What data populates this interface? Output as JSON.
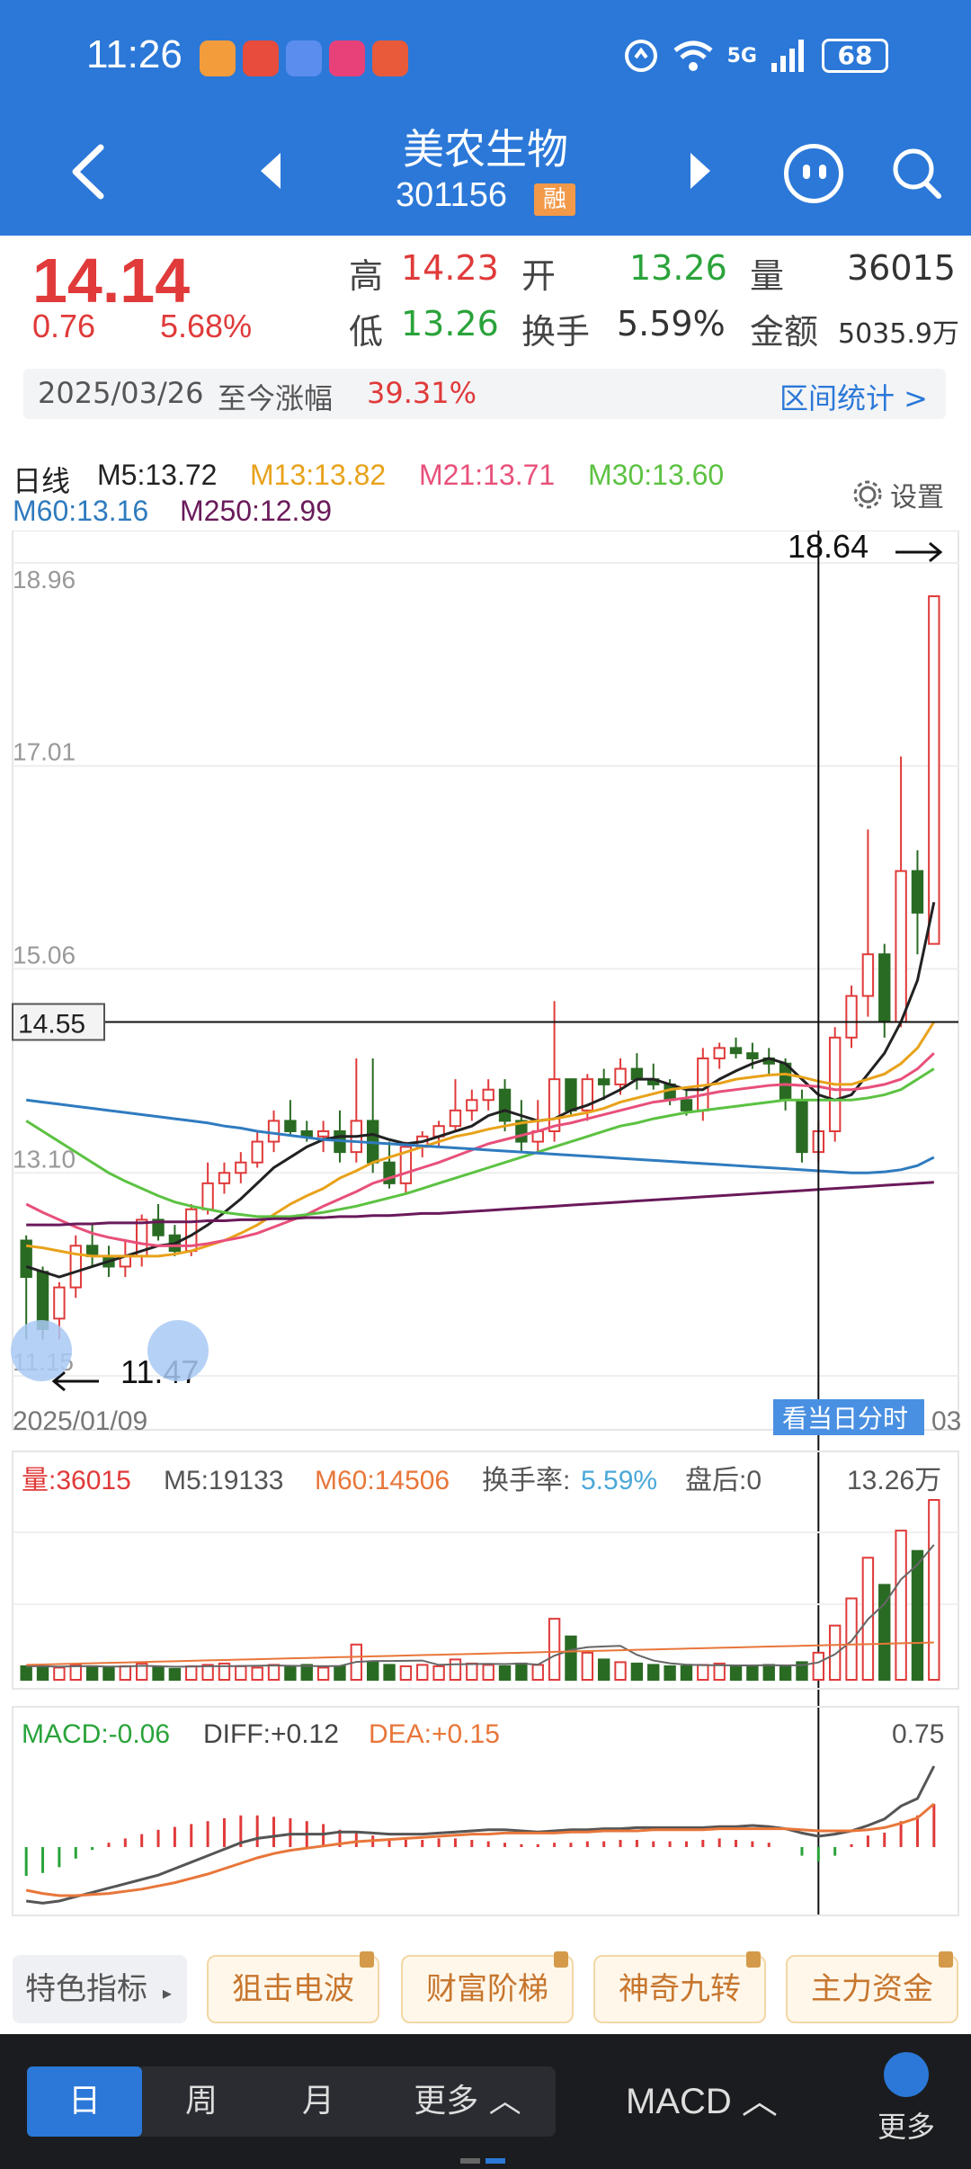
{
  "status_bar": {
    "time": "11:26",
    "network": "5G",
    "battery": "68",
    "app_icon_colors": [
      "#f39c3c",
      "#e74c3c",
      "#5b8def",
      "#e8417a",
      "#e85a3a"
    ]
  },
  "nav": {
    "stock_name": "美农生物",
    "stock_code": "301156",
    "margin_badge": "融"
  },
  "quote": {
    "price": "14.14",
    "change": "0.76",
    "change_pct": "5.68%",
    "high_label": "高",
    "high": "14.23",
    "open_label": "开",
    "open": "13.26",
    "volume_label": "量",
    "volume": "36015",
    "low_label": "低",
    "low": "13.26",
    "turnover_label": "换手",
    "turnover": "5.59%",
    "amount_label": "金额",
    "amount": "5035.9万",
    "since_date": "2025/03/26",
    "since_label": "至今涨幅",
    "since_pct": "39.31%",
    "range_stats": "区间统计 >"
  },
  "indicators": {
    "period": "日线",
    "m5": "M5:13.72",
    "m13": "M13:13.82",
    "m21": "M21:13.71",
    "m30": "M30:13.60",
    "m60": "M60:13.16",
    "m250": "M250:12.99",
    "settings": "设置"
  },
  "colors": {
    "up": "#e03a3a",
    "down": "#2a6b24",
    "m5": "#222222",
    "m13": "#e8a21a",
    "m21": "#e8507a",
    "m30": "#5cc242",
    "m60": "#2f7bbf",
    "m250": "#6a1a5a",
    "accent": "#2b78d8"
  },
  "chart_data": {
    "type": "candlestick",
    "y_ticks": [
      "18.96",
      "17.01",
      "15.06",
      "13.10",
      "11.15"
    ],
    "ylim": [
      11.15,
      18.96
    ],
    "high_marker": "18.64",
    "low_marker": "11.47",
    "crosshair_value": "14.55",
    "start_date": "2025/01/09",
    "end_date_partial": "03",
    "intraday_button": "看当日分时",
    "candles": [
      [
        12.45,
        12.1,
        12.5,
        11.5
      ],
      [
        12.15,
        11.6,
        12.2,
        11.5
      ],
      [
        11.7,
        12.0,
        12.05,
        11.5
      ],
      [
        12.0,
        12.4,
        12.5,
        11.9
      ],
      [
        12.4,
        12.3,
        12.6,
        12.2
      ],
      [
        12.3,
        12.2,
        12.4,
        12.1
      ],
      [
        12.2,
        12.3,
        12.45,
        12.1
      ],
      [
        12.3,
        12.65,
        12.7,
        12.2
      ],
      [
        12.65,
        12.5,
        12.8,
        12.45
      ],
      [
        12.5,
        12.35,
        12.6,
        12.3
      ],
      [
        12.35,
        12.75,
        12.8,
        12.3
      ],
      [
        12.75,
        13.0,
        13.2,
        12.7
      ],
      [
        13.0,
        13.1,
        13.2,
        12.9
      ],
      [
        13.1,
        13.2,
        13.3,
        13.0
      ],
      [
        13.2,
        13.4,
        13.5,
        13.15
      ],
      [
        13.4,
        13.6,
        13.7,
        13.3
      ],
      [
        13.6,
        13.5,
        13.8,
        13.45
      ],
      [
        13.5,
        13.45,
        13.6,
        13.4
      ],
      [
        13.45,
        13.5,
        13.6,
        13.3
      ],
      [
        13.5,
        13.3,
        13.7,
        13.2
      ],
      [
        13.3,
        13.6,
        14.2,
        13.2
      ],
      [
        13.6,
        13.2,
        14.2,
        13.1
      ],
      [
        13.2,
        13.0,
        13.4,
        12.95
      ],
      [
        13.0,
        13.35,
        13.4,
        12.9
      ],
      [
        13.35,
        13.45,
        13.5,
        13.25
      ],
      [
        13.45,
        13.55,
        13.6,
        13.35
      ],
      [
        13.55,
        13.7,
        14.0,
        13.5
      ],
      [
        13.7,
        13.8,
        13.9,
        13.6
      ],
      [
        13.8,
        13.9,
        14.0,
        13.7
      ],
      [
        13.9,
        13.6,
        14.0,
        13.5
      ],
      [
        13.6,
        13.4,
        13.8,
        13.3
      ],
      [
        13.4,
        13.5,
        13.8,
        13.3
      ],
      [
        13.5,
        14.0,
        14.75,
        13.4
      ],
      [
        14.0,
        13.7,
        14.0,
        13.65
      ],
      [
        13.7,
        14.0,
        14.05,
        13.6
      ],
      [
        14.0,
        13.95,
        14.1,
        13.8
      ],
      [
        13.95,
        14.1,
        14.2,
        13.85
      ],
      [
        14.1,
        14.0,
        14.25,
        13.9
      ],
      [
        14.0,
        13.95,
        14.15,
        13.9
      ],
      [
        13.95,
        13.8,
        14.0,
        13.75
      ],
      [
        13.8,
        13.7,
        13.9,
        13.65
      ],
      [
        13.7,
        14.2,
        14.3,
        13.6
      ],
      [
        14.2,
        14.3,
        14.35,
        14.1
      ],
      [
        14.3,
        14.25,
        14.4,
        14.2
      ],
      [
        14.25,
        14.2,
        14.35,
        14.1
      ],
      [
        14.2,
        14.15,
        14.3,
        14.05
      ],
      [
        14.15,
        13.8,
        14.2,
        13.7
      ],
      [
        13.8,
        13.3,
        13.9,
        13.2
      ],
      [
        13.3,
        13.5,
        13.6,
        13.2
      ],
      [
        13.5,
        14.4,
        14.5,
        13.4
      ],
      [
        14.4,
        14.8,
        14.9,
        14.3
      ],
      [
        14.8,
        15.2,
        16.4,
        14.6
      ],
      [
        15.2,
        14.55,
        15.3,
        14.4
      ],
      [
        14.55,
        16.0,
        17.1,
        14.5
      ],
      [
        16.0,
        15.6,
        16.2,
        15.2
      ],
      [
        15.3,
        18.64,
        18.64,
        15.3
      ]
    ],
    "ma": {
      "m5": [
        12.2,
        12.15,
        12.1,
        12.15,
        12.2,
        12.25,
        12.3,
        12.35,
        12.4,
        12.42,
        12.5,
        12.6,
        12.72,
        12.85,
        13.0,
        13.15,
        13.25,
        13.35,
        13.42,
        13.45,
        13.45,
        13.47,
        13.42,
        13.38,
        13.4,
        13.45,
        13.5,
        13.55,
        13.65,
        13.7,
        13.65,
        13.6,
        13.62,
        13.7,
        13.75,
        13.82,
        13.9,
        14.0,
        14.0,
        13.95,
        13.9,
        13.9,
        14.0,
        14.08,
        14.15,
        14.2,
        14.15,
        14.0,
        13.85,
        13.8,
        13.85,
        14.05,
        14.25,
        14.55,
        14.95,
        15.7
      ],
      "m13": [
        12.4,
        12.38,
        12.35,
        12.32,
        12.3,
        12.3,
        12.3,
        12.3,
        12.3,
        12.32,
        12.35,
        12.4,
        12.45,
        12.52,
        12.6,
        12.7,
        12.8,
        12.88,
        12.95,
        13.05,
        13.12,
        13.2,
        13.25,
        13.3,
        13.35,
        13.4,
        13.45,
        13.48,
        13.52,
        13.55,
        13.58,
        13.6,
        13.62,
        13.65,
        13.68,
        13.72,
        13.78,
        13.82,
        13.86,
        13.9,
        13.92,
        13.94,
        13.96,
        14.0,
        14.02,
        14.04,
        14.05,
        14.02,
        13.98,
        13.95,
        13.95,
        14.0,
        14.05,
        14.15,
        14.3,
        14.55
      ],
      "m21": [
        12.8,
        12.72,
        12.65,
        12.58,
        12.52,
        12.48,
        12.45,
        12.42,
        12.4,
        12.4,
        12.4,
        12.42,
        12.45,
        12.48,
        12.52,
        12.58,
        12.64,
        12.7,
        12.78,
        12.85,
        12.92,
        13.0,
        13.05,
        13.1,
        13.15,
        13.2,
        13.26,
        13.32,
        13.38,
        13.42,
        13.46,
        13.5,
        13.55,
        13.58,
        13.62,
        13.66,
        13.7,
        13.74,
        13.78,
        13.8,
        13.82,
        13.85,
        13.88,
        13.9,
        13.92,
        13.94,
        13.95,
        13.94,
        13.93,
        13.9,
        13.9,
        13.92,
        13.95,
        14.0,
        14.1,
        14.25
      ],
      "m30": [
        13.6,
        13.5,
        13.4,
        13.3,
        13.2,
        13.1,
        13.02,
        12.95,
        12.88,
        12.82,
        12.78,
        12.75,
        12.72,
        12.7,
        12.68,
        12.68,
        12.68,
        12.7,
        12.72,
        12.75,
        12.78,
        12.82,
        12.86,
        12.9,
        12.95,
        13.0,
        13.05,
        13.1,
        13.15,
        13.2,
        13.25,
        13.3,
        13.35,
        13.4,
        13.45,
        13.5,
        13.55,
        13.58,
        13.62,
        13.65,
        13.68,
        13.7,
        13.72,
        13.74,
        13.76,
        13.78,
        13.8,
        13.8,
        13.8,
        13.8,
        13.8,
        13.82,
        13.85,
        13.9,
        14.0,
        14.1
      ],
      "m60": [
        13.8,
        13.78,
        13.76,
        13.74,
        13.72,
        13.7,
        13.68,
        13.66,
        13.64,
        13.62,
        13.6,
        13.58,
        13.55,
        13.53,
        13.5,
        13.48,
        13.46,
        13.44,
        13.42,
        13.41,
        13.4,
        13.39,
        13.38,
        13.37,
        13.36,
        13.35,
        13.34,
        13.33,
        13.32,
        13.31,
        13.3,
        13.29,
        13.28,
        13.27,
        13.26,
        13.25,
        13.24,
        13.23,
        13.22,
        13.21,
        13.2,
        13.19,
        13.18,
        13.17,
        13.16,
        13.15,
        13.14,
        13.13,
        13.12,
        13.11,
        13.1,
        13.1,
        13.11,
        13.13,
        13.17,
        13.25
      ],
      "m250": [
        12.6,
        12.6,
        12.6,
        12.61,
        12.61,
        12.62,
        12.62,
        12.62,
        12.63,
        12.63,
        12.63,
        12.64,
        12.64,
        12.65,
        12.65,
        12.66,
        12.66,
        12.67,
        12.67,
        12.68,
        12.68,
        12.69,
        12.69,
        12.7,
        12.71,
        12.71,
        12.72,
        12.73,
        12.74,
        12.75,
        12.76,
        12.77,
        12.78,
        12.79,
        12.8,
        12.81,
        12.82,
        12.83,
        12.84,
        12.85,
        12.86,
        12.87,
        12.88,
        12.89,
        12.9,
        12.91,
        12.92,
        12.93,
        12.94,
        12.95,
        12.96,
        12.97,
        12.98,
        12.99,
        13.0,
        13.01
      ]
    },
    "volume": {
      "label": "量:36015",
      "m5": "M5:19133",
      "m60": "M60:14506",
      "turnover_label": "换手率:",
      "turnover": "5.59%",
      "after_hours": "盘后:0",
      "max": "13.26万",
      "values": [
        1.0,
        1.0,
        0.9,
        1.1,
        1.0,
        0.9,
        1.0,
        1.2,
        0.9,
        0.8,
        1.0,
        1.1,
        1.2,
        1.0,
        0.9,
        1.1,
        1.0,
        1.1,
        0.9,
        1.0,
        2.6,
        1.3,
        1.1,
        1.0,
        1.1,
        1.0,
        1.5,
        1.2,
        1.1,
        1.0,
        1.2,
        1.1,
        4.5,
        3.2,
        2.0,
        1.5,
        1.3,
        1.2,
        1.1,
        1.0,
        1.0,
        1.1,
        1.2,
        1.0,
        1.0,
        1.1,
        1.0,
        1.3,
        2.0,
        4.0,
        6.0,
        9.0,
        7.0,
        11.0,
        9.5,
        13.26
      ]
    },
    "macd": {
      "macd": "MACD:-0.06",
      "diff": "DIFF:+0.12",
      "dea": "DEA:+0.15",
      "max": "0.75",
      "hist": [
        -0.2,
        -0.18,
        -0.14,
        -0.08,
        -0.02,
        0.03,
        0.06,
        0.09,
        0.12,
        0.14,
        0.16,
        0.18,
        0.2,
        0.22,
        0.22,
        0.21,
        0.2,
        0.18,
        0.16,
        0.12,
        0.1,
        0.08,
        0.06,
        0.05,
        0.05,
        0.06,
        0.06,
        0.05,
        0.04,
        0.03,
        0.02,
        0.02,
        0.03,
        0.03,
        0.04,
        0.04,
        0.05,
        0.05,
        0.04,
        0.04,
        0.04,
        0.05,
        0.06,
        0.05,
        0.04,
        0.03,
        0.0,
        -0.06,
        -0.1,
        -0.06,
        0.02,
        0.08,
        0.1,
        0.18,
        0.22,
        0.3
      ],
      "diff_series": [
        -0.5,
        -0.52,
        -0.5,
        -0.46,
        -0.42,
        -0.38,
        -0.34,
        -0.3,
        -0.26,
        -0.2,
        -0.14,
        -0.08,
        -0.02,
        0.04,
        0.08,
        0.1,
        0.12,
        0.12,
        0.12,
        0.14,
        0.14,
        0.13,
        0.12,
        0.12,
        0.12,
        0.13,
        0.14,
        0.15,
        0.16,
        0.16,
        0.15,
        0.14,
        0.15,
        0.16,
        0.16,
        0.17,
        0.17,
        0.18,
        0.18,
        0.18,
        0.18,
        0.18,
        0.19,
        0.19,
        0.2,
        0.19,
        0.17,
        0.13,
        0.1,
        0.12,
        0.15,
        0.2,
        0.26,
        0.38,
        0.45,
        0.75
      ],
      "dea_series": [
        -0.4,
        -0.43,
        -0.45,
        -0.45,
        -0.44,
        -0.43,
        -0.41,
        -0.39,
        -0.36,
        -0.33,
        -0.29,
        -0.25,
        -0.2,
        -0.15,
        -0.1,
        -0.06,
        -0.03,
        -0.01,
        0.01,
        0.03,
        0.05,
        0.06,
        0.07,
        0.08,
        0.09,
        0.1,
        0.11,
        0.12,
        0.12,
        0.13,
        0.13,
        0.13,
        0.13,
        0.14,
        0.14,
        0.15,
        0.15,
        0.15,
        0.16,
        0.16,
        0.16,
        0.16,
        0.17,
        0.17,
        0.17,
        0.17,
        0.17,
        0.16,
        0.15,
        0.15,
        0.15,
        0.16,
        0.18,
        0.22,
        0.27,
        0.4
      ]
    }
  },
  "features": {
    "label": "特色指标",
    "buttons": [
      "狙击电波",
      "财富阶梯",
      "神奇九转",
      "主力资金"
    ]
  },
  "bottom_tabs": {
    "periods": [
      "日",
      "周",
      "月",
      "更多 ︿"
    ],
    "indicator": "MACD ︿",
    "more": "更多"
  }
}
